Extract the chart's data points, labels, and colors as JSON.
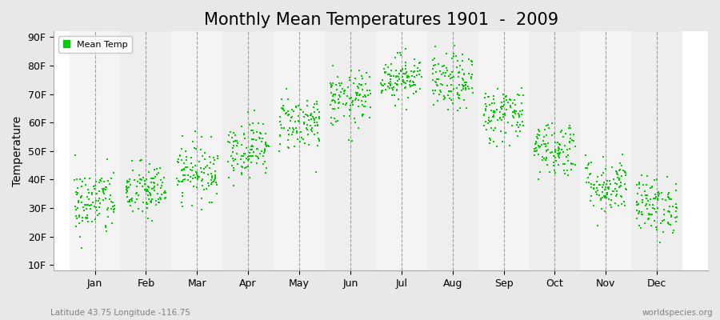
{
  "title": "Monthly Mean Temperatures 1901  -  2009",
  "ylabel": "Temperature",
  "subtitle": "Latitude 43.75 Longitude -116.75",
  "watermark": "worldspecies.org",
  "legend_label": "Mean Temp",
  "ytick_labels": [
    "10F",
    "20F",
    "30F",
    "40F",
    "50F",
    "60F",
    "70F",
    "80F",
    "90F"
  ],
  "ytick_values": [
    10,
    20,
    30,
    40,
    50,
    60,
    70,
    80,
    90
  ],
  "ylim": [
    8,
    92
  ],
  "month_names": [
    "Jan",
    "Feb",
    "Mar",
    "Apr",
    "May",
    "Jun",
    "Jul",
    "Aug",
    "Sep",
    "Oct",
    "Nov",
    "Dec"
  ],
  "month_means": [
    32,
    36,
    43,
    51,
    60,
    68,
    76,
    74,
    63,
    51,
    38,
    31
  ],
  "month_stds": [
    6,
    5,
    5,
    5,
    5,
    5,
    4,
    5,
    5,
    5,
    5,
    5
  ],
  "n_years": 109,
  "dot_color": "#00CC00",
  "dot_size": 3,
  "background_color": "#E8E8E8",
  "plot_bg_color": "#FFFFFF",
  "grid_color": "#666666",
  "title_fontsize": 15,
  "label_fontsize": 10,
  "tick_fontsize": 9,
  "seed": 42
}
